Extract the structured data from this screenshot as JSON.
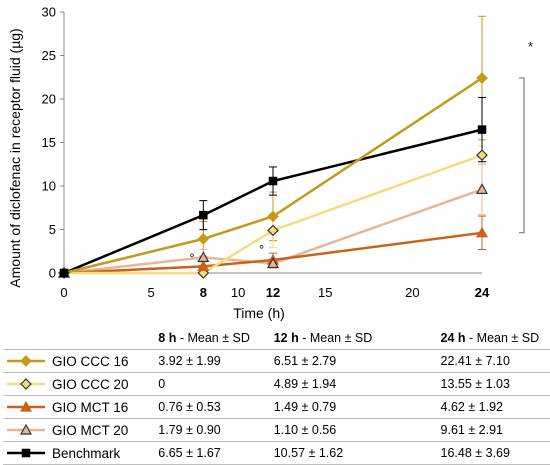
{
  "chart_data": {
    "type": "line",
    "ylabel": "Amount of diclofenac in receptor fluid (µg)",
    "xlabel": "Time (h)",
    "xlim": [
      0,
      24
    ],
    "ylim": [
      0,
      30
    ],
    "xticks": [
      0,
      5,
      8,
      10,
      12,
      15,
      20,
      24
    ],
    "xticks_bold": [
      8,
      12,
      24
    ],
    "yticks": [
      0,
      5,
      10,
      15,
      20,
      25,
      30
    ],
    "x": [
      0,
      8,
      12,
      24
    ],
    "series": [
      {
        "name": "GIO CCC 16",
        "color": "#c49a1a",
        "marker": "diamond-filled",
        "values": [
          0,
          3.92,
          6.51,
          22.41
        ],
        "sd": [
          0,
          1.99,
          2.79,
          7.1
        ]
      },
      {
        "name": "GIO CCC 20",
        "color": "#f7da7a",
        "marker": "diamond-open",
        "values": [
          0,
          0,
          4.89,
          13.55
        ],
        "sd": [
          0,
          0,
          1.94,
          1.03
        ]
      },
      {
        "name": "GIO MCT 16",
        "color": "#c8621b",
        "marker": "triangle-filled",
        "values": [
          0,
          0.76,
          1.49,
          4.62
        ],
        "sd": [
          0,
          0.53,
          0.79,
          1.92
        ]
      },
      {
        "name": "GIO MCT 20",
        "color": "#eab497",
        "marker": "triangle-open",
        "values": [
          0,
          1.79,
          1.1,
          9.61
        ],
        "sd": [
          0,
          0.9,
          0.56,
          2.91
        ]
      },
      {
        "name": "Benchmark",
        "color": "#000000",
        "marker": "square-filled",
        "values": [
          0,
          6.65,
          10.57,
          16.48
        ],
        "sd": [
          0,
          1.67,
          1.62,
          3.69
        ]
      }
    ],
    "annotations": [
      "*",
      "°",
      "°"
    ],
    "grid": false,
    "legend": "table-below"
  },
  "table": {
    "headers": [
      {
        "bold": "8 h",
        "rest": " - Mean ± SD"
      },
      {
        "bold": "12 h",
        "rest": " - Mean ± SD"
      },
      {
        "bold": "24 h",
        "rest": " - Mean ± SD"
      }
    ],
    "rows": [
      {
        "label": "GIO CCC 16",
        "v8": "3.92 ± 1.99",
        "v12": "6.51 ± 2.79",
        "v24": "22.41 ± 7.10"
      },
      {
        "label": "GIO CCC 20",
        "v8": "0",
        "v12": "4.89 ± 1.94",
        "v24": "13.55 ± 1.03"
      },
      {
        "label": "GIO MCT 16",
        "v8": "0.76 ± 0.53",
        "v12": "1.49 ± 0.79",
        "v24": "4.62 ± 1.92"
      },
      {
        "label": "GIO MCT 20",
        "v8": "1.79 ± 0.90",
        "v12": "1.10 ± 0.56",
        "v24": "9.61 ± 2.91"
      },
      {
        "label": "Benchmark",
        "v8": "6.65 ± 1.67",
        "v12": "10.57 ± 1.62",
        "v24": "16.48 ± 3.69"
      }
    ]
  }
}
